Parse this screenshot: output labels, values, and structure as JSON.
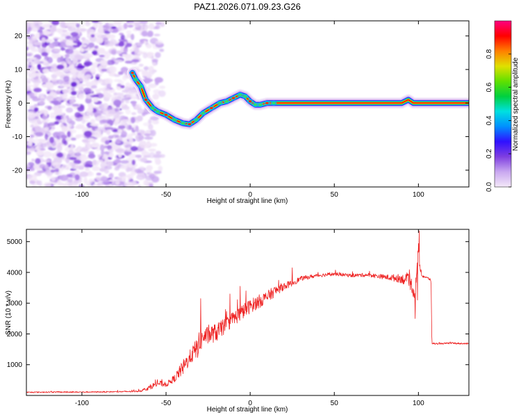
{
  "chart_data": [
    {
      "type": "heatmap",
      "title": "PAZ1.2026.071.09.23.G26",
      "xlabel": "Height of straight line (km)",
      "ylabel": "Frequency (Hz)",
      "xlim": [
        -133,
        130
      ],
      "ylim": [
        -25,
        24.5
      ],
      "xticks": [
        -100,
        -50,
        0,
        50,
        100
      ],
      "xtick_labels": [
        "-100",
        "-50",
        "0",
        "50",
        "100"
      ],
      "yticks": [
        -20,
        -10,
        0,
        10,
        20
      ],
      "ytick_labels": [
        "-20",
        "-10",
        "0",
        "10",
        "20"
      ],
      "noise_region_x": [
        -133,
        -52
      ],
      "ridge": {
        "name": "dominant frequency track",
        "points": [
          [
            -70,
            9
          ],
          [
            -68,
            7
          ],
          [
            -65,
            5
          ],
          [
            -62,
            1
          ],
          [
            -58,
            -1.5
          ],
          [
            -55,
            -2.5
          ],
          [
            -50,
            -3.5
          ],
          [
            -45,
            -5
          ],
          [
            -40,
            -6
          ],
          [
            -36,
            -6.3
          ],
          [
            -32,
            -5
          ],
          [
            -28,
            -3
          ],
          [
            -23,
            -1.5
          ],
          [
            -18,
            0
          ],
          [
            -14,
            0.5
          ],
          [
            -10,
            1.5
          ],
          [
            -6,
            2.5
          ],
          [
            -3,
            2
          ],
          [
            0,
            0.5
          ],
          [
            3,
            -0.5
          ],
          [
            6,
            -0.5
          ],
          [
            10,
            0
          ],
          [
            14,
            0
          ],
          [
            20,
            0
          ],
          [
            50,
            0
          ],
          [
            70,
            0
          ],
          [
            90,
            0
          ],
          [
            94,
            1
          ],
          [
            97,
            0
          ],
          [
            100,
            0
          ],
          [
            130,
            0
          ]
        ],
        "steady_value": 0,
        "steady_from_x": 14
      },
      "colorbar": {
        "label": "Normalized spectral amplitude",
        "range": [
          0,
          1
        ],
        "ticks": [
          0.0,
          0.2,
          0.4,
          0.6,
          0.8
        ],
        "tick_labels": [
          "0.0",
          "0.2",
          "0.4",
          "0.6",
          "0.8"
        ],
        "colormap": [
          "#f4e8f8",
          "#c9a8f0",
          "#7f3fe0",
          "#3010ff",
          "#0090ff",
          "#00e0e0",
          "#00d040",
          "#60e000",
          "#e0e000",
          "#ff8000",
          "#ff0000",
          "#ff0080"
        ]
      }
    },
    {
      "type": "line",
      "xlabel": "Height of straight line (km)",
      "ylabel": "SNR (10 * v/v)",
      "xlim": [
        -133,
        130
      ],
      "ylim": [
        0,
        5400
      ],
      "xticks": [
        -100,
        -50,
        0,
        50,
        100
      ],
      "xtick_labels": [
        "-100",
        "-50",
        "0",
        "50",
        "100"
      ],
      "yticks": [
        1000,
        2000,
        3000,
        4000,
        5000
      ],
      "ytick_labels": [
        "1000",
        "2000",
        "3000",
        "4000",
        "5000"
      ],
      "series": [
        {
          "name": "SNR",
          "color": "#ee2222",
          "x": [
            -133,
            -120,
            -100,
            -80,
            -70,
            -65,
            -60,
            -55,
            -50,
            -45,
            -40,
            -35,
            -32,
            -30,
            -28,
            -25,
            -20,
            -15,
            -10,
            -5,
            0,
            5,
            10,
            15,
            20,
            25,
            30,
            40,
            50,
            60,
            70,
            80,
            90,
            95,
            98,
            100,
            101,
            102,
            104,
            106,
            107.5,
            108,
            110,
            120,
            130
          ],
          "values": [
            100,
            110,
            110,
            120,
            130,
            150,
            250,
            400,
            350,
            550,
            900,
            1300,
            1500,
            1700,
            1900,
            1950,
            2050,
            2250,
            2500,
            2700,
            2900,
            3050,
            3200,
            3400,
            3550,
            3650,
            3800,
            3900,
            3950,
            3900,
            3920,
            3850,
            3800,
            3700,
            3300,
            4800,
            4100,
            3900,
            3850,
            3800,
            3750,
            1700,
            1680,
            1700,
            1680
          ],
          "noise": [
            40,
            40,
            40,
            40,
            50,
            70,
            150,
            220,
            150,
            250,
            500,
            500,
            700,
            800,
            500,
            600,
            600,
            500,
            500,
            500,
            450,
            450,
            400,
            350,
            250,
            200,
            150,
            120,
            110,
            110,
            130,
            160,
            300,
            500,
            500,
            400,
            300,
            120,
            90,
            80,
            70,
            50,
            50,
            50,
            50
          ],
          "spikes": [
            [
              -29.5,
              3150
            ],
            [
              -12,
              3300
            ],
            [
              -6,
              3550
            ],
            [
              -2.5,
              3400
            ],
            [
              25,
              4150
            ],
            [
              100.5,
              5350
            ],
            [
              98,
              2500
            ],
            [
              99.5,
              3100
            ]
          ]
        }
      ]
    }
  ]
}
